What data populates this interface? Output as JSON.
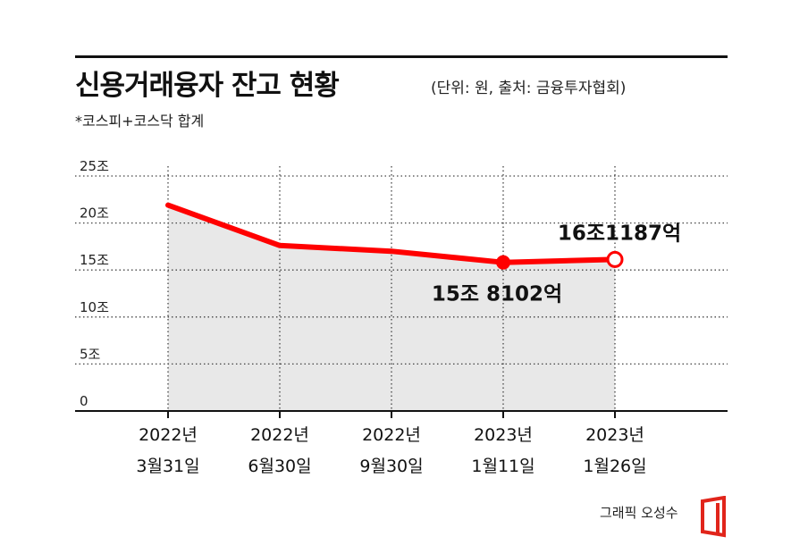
{
  "header": {
    "title": "신용거래융자 잔고 현황",
    "source": "(단위: 원, 출처: 금융투자협회)",
    "note": "*코스피+코스닥 합계"
  },
  "credit": "그래픽 오성수",
  "colors": {
    "line": "#ff0000",
    "area": "#e8e8e8",
    "text": "#111111"
  },
  "chart_data": {
    "type": "area",
    "title": "신용거래융자 잔고 현황",
    "unit": "조",
    "x_labels": [
      [
        "2022년",
        "3월31일"
      ],
      [
        "2022년",
        "6월30일"
      ],
      [
        "2022년",
        "9월30일"
      ],
      [
        "2023년",
        "1월11일"
      ],
      [
        "2023년",
        "1월26일"
      ]
    ],
    "series": [
      {
        "values": [
          21.9,
          17.6,
          17.0,
          15.8102,
          16.1187
        ]
      }
    ],
    "yticks": [
      {
        "value": 0,
        "label": "0"
      },
      {
        "value": 5,
        "label": "5조"
      },
      {
        "value": 10,
        "label": "10조"
      },
      {
        "value": 15,
        "label": "15조"
      },
      {
        "value": 20,
        "label": "20조"
      },
      {
        "value": 25,
        "label": "25조"
      }
    ],
    "ylim": [
      0,
      25
    ],
    "annotations": [
      {
        "index": 3,
        "label": "15조 8102억",
        "marker": "filled",
        "position": "below"
      },
      {
        "index": 4,
        "label": "16조1187억",
        "marker": "hollow",
        "position": "above"
      }
    ],
    "grid": true
  }
}
